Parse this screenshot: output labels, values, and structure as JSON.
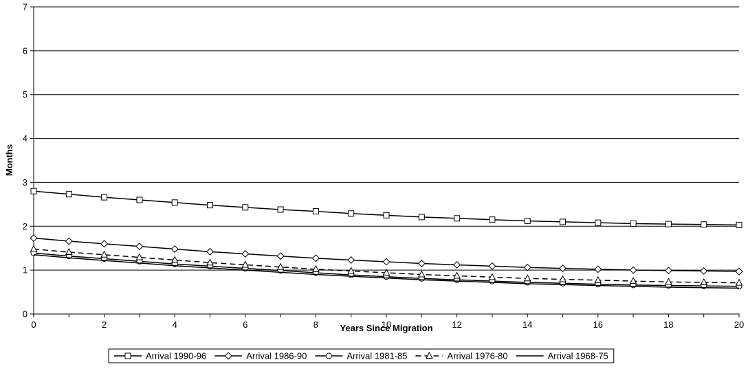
{
  "chart_data": {
    "type": "line",
    "title": "",
    "xlabel": "Years Since Migration",
    "ylabel": "Months",
    "xlim": [
      0,
      20
    ],
    "ylim": [
      0,
      7
    ],
    "x_ticks": [
      0,
      2,
      4,
      6,
      8,
      10,
      12,
      14,
      16,
      18,
      20
    ],
    "y_ticks": [
      0,
      1,
      2,
      3,
      4,
      5,
      6,
      7
    ],
    "grid": "horizontal",
    "legend_position": "bottom",
    "x": [
      0,
      1,
      2,
      3,
      4,
      5,
      6,
      7,
      8,
      9,
      10,
      11,
      12,
      13,
      14,
      15,
      16,
      17,
      18,
      19,
      20
    ],
    "series": [
      {
        "name": "Arrival 1990-96",
        "marker": "square",
        "dash": "solid",
        "values": [
          2.8,
          2.73,
          2.66,
          2.6,
          2.54,
          2.48,
          2.43,
          2.38,
          2.34,
          2.29,
          2.25,
          2.21,
          2.18,
          2.15,
          2.12,
          2.1,
          2.08,
          2.06,
          2.05,
          2.04,
          2.03
        ]
      },
      {
        "name": "Arrival 1986-90",
        "marker": "diamond",
        "dash": "solid",
        "values": [
          1.73,
          1.66,
          1.6,
          1.54,
          1.48,
          1.42,
          1.37,
          1.32,
          1.27,
          1.23,
          1.19,
          1.15,
          1.12,
          1.09,
          1.06,
          1.04,
          1.02,
          1.0,
          0.99,
          0.98,
          0.97
        ]
      },
      {
        "name": "Arrival 1981-85",
        "marker": "circle",
        "dash": "solid",
        "values": [
          1.39,
          1.32,
          1.26,
          1.2,
          1.14,
          1.09,
          1.04,
          0.99,
          0.94,
          0.89,
          0.85,
          0.81,
          0.78,
          0.75,
          0.72,
          0.7,
          0.68,
          0.66,
          0.65,
          0.64,
          0.63
        ]
      },
      {
        "name": "Arrival 1976-80",
        "marker": "triangle",
        "dash": "dashed",
        "values": [
          1.48,
          1.41,
          1.35,
          1.29,
          1.23,
          1.17,
          1.12,
          1.07,
          1.02,
          0.98,
          0.94,
          0.9,
          0.87,
          0.84,
          0.81,
          0.79,
          0.77,
          0.75,
          0.73,
          0.72,
          0.71
        ]
      },
      {
        "name": "Arrival 1968-75",
        "marker": "none",
        "dash": "solid",
        "values": [
          1.35,
          1.28,
          1.22,
          1.16,
          1.1,
          1.05,
          1.0,
          0.95,
          0.9,
          0.86,
          0.82,
          0.78,
          0.75,
          0.72,
          0.69,
          0.67,
          0.65,
          0.63,
          0.61,
          0.6,
          0.59
        ]
      }
    ]
  }
}
